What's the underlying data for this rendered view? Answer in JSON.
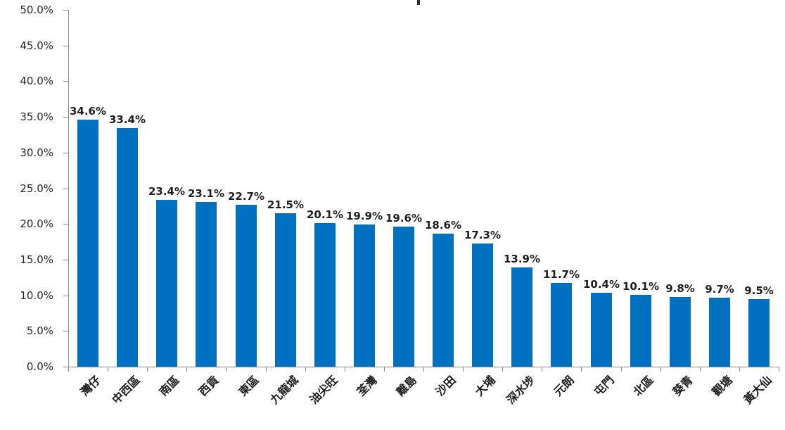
{
  "chart_data": {
    "type": "bar",
    "title": "",
    "xlabel": "",
    "ylabel": "",
    "categories": [
      "灣仔",
      "中西區",
      "南區",
      "西貢",
      "東區",
      "九龍城",
      "油尖旺",
      "荃灣",
      "離島",
      "沙田",
      "大埔",
      "深水埗",
      "元朗",
      "屯門",
      "北區",
      "葵青",
      "觀塘",
      "黃大仙"
    ],
    "values": [
      34.6,
      33.4,
      23.4,
      23.1,
      22.7,
      21.5,
      20.1,
      19.9,
      19.6,
      18.6,
      17.3,
      13.9,
      11.7,
      10.4,
      10.1,
      9.8,
      9.7,
      9.5
    ],
    "data_labels": [
      "34.6%",
      "33.4%",
      "23.4%",
      "23.1%",
      "22.7%",
      "21.5%",
      "20.1%",
      "19.9%",
      "19.6%",
      "18.6%",
      "17.3%",
      "13.9%",
      "11.7%",
      "10.4%",
      "10.1%",
      "9.8%",
      "9.7%",
      "9.5%"
    ],
    "y_tick_labels": [
      "0.0%",
      "5.0%",
      "10.0%",
      "15.0%",
      "20.0%",
      "25.0%",
      "30.0%",
      "35.0%",
      "40.0%",
      "45.0%",
      "50.0%"
    ],
    "ylim": [
      0,
      50
    ],
    "y_step": 5,
    "grid": false,
    "legend": "none",
    "x_label_rotation_deg": 45,
    "colors": {
      "bar": "#0070C0",
      "axis": "#8C8C8C",
      "data_label": "#1F1F1F",
      "tick_label": "#262626"
    }
  }
}
